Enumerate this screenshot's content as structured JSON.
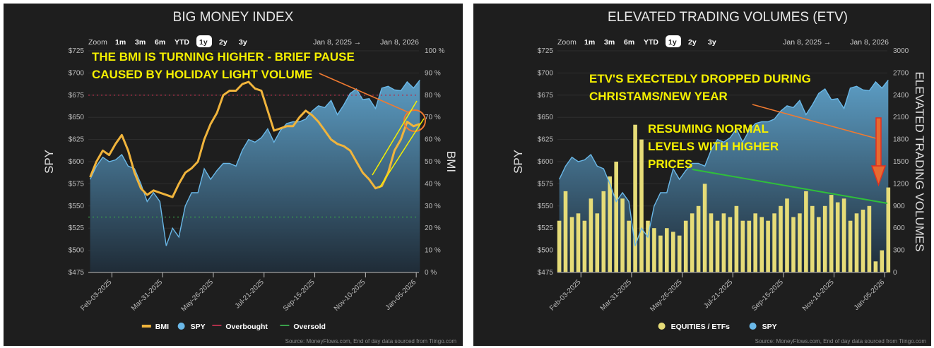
{
  "zoom_controls": {
    "label": "Zoom",
    "buttons": [
      "1m",
      "3m",
      "6m",
      "YTD",
      "1y",
      "2y",
      "3y"
    ],
    "selected": "1y",
    "range_from": "Jan 8, 2025",
    "range_arrow": "→",
    "range_to": "Jan 8, 2026"
  },
  "source": "Source: MoneyFlows.com, End of day data sourced from Tiingo.com",
  "colors": {
    "panel_bg": "#1e1e1e",
    "spy_line": "#6ab8e8",
    "spy_area_top": "#5fa3cc",
    "spy_area_bottom": "#1f2c38",
    "bmi": "#f0b43c",
    "overbought": "#b0304a",
    "oversold": "#3aa04a",
    "volume": "#e6dc78",
    "annotation_text": "#f5f000",
    "annotation_arrow": "#f07a30",
    "channel": "#f5f000",
    "trend_green": "#2fbf3a",
    "red_arrow": "#e03020"
  },
  "chart_data": [
    {
      "type": "line",
      "title": "BIG MONEY INDEX",
      "ylabel": "SPY",
      "y2label": "BMI",
      "ylim": [
        475,
        725
      ],
      "y2lim": [
        0,
        100
      ],
      "yticks": [
        "$475",
        "$500",
        "$525",
        "$550",
        "$575",
        "$600",
        "$625",
        "$650",
        "$675",
        "$700",
        "$725"
      ],
      "y2ticks": [
        "0 %",
        "10 %",
        "20 %",
        "30 %",
        "40 %",
        "50 %",
        "60 %",
        "70 %",
        "80 %",
        "90 %",
        "100 %"
      ],
      "xlim": [
        "2025-01-08",
        "2026-01-08"
      ],
      "xticks": [
        "Feb-03-2025",
        "Mar-31-2025",
        "May-26-2025",
        "Jul-21-2025",
        "Sep-15-2025",
        "Nov-10-2025",
        "Jan-05-2026"
      ],
      "grid": true,
      "legend": {
        "placement": "bottom",
        "items": [
          "BMI",
          "SPY",
          "Overbought",
          "Oversold"
        ]
      },
      "overbought": 80,
      "oversold": 25,
      "x_start": "2025-01-10",
      "x_step_days": 7,
      "series": [
        {
          "name": "SPY",
          "axis": "left",
          "kind": "area",
          "values": [
            580,
            595,
            605,
            600,
            602,
            608,
            595,
            592,
            575,
            555,
            565,
            555,
            505,
            525,
            515,
            550,
            565,
            565,
            592,
            580,
            590,
            598,
            598,
            595,
            613,
            625,
            622,
            627,
            637,
            622,
            635,
            643,
            645,
            645,
            648,
            657,
            663,
            661,
            669,
            653,
            664,
            677,
            682,
            670,
            671,
            660,
            683,
            685,
            681,
            680,
            690,
            683,
            692
          ]
        },
        {
          "name": "BMI",
          "axis": "right",
          "kind": "line",
          "values": [
            43,
            50,
            55,
            53,
            58,
            62,
            55,
            45,
            38,
            35,
            37,
            36,
            35,
            34,
            40,
            45,
            47,
            50,
            60,
            67,
            72,
            80,
            82,
            82,
            85,
            86,
            83,
            82,
            73,
            64,
            65,
            66,
            66,
            70,
            73,
            71,
            68,
            64,
            60,
            58,
            57,
            55,
            50,
            45,
            42,
            38,
            39,
            45,
            55,
            60,
            68,
            66,
            67
          ]
        }
      ],
      "annotations": [
        "THE BMI IS TURNING HIGHER - BRIEF PAUSE",
        "CAUSED BY HOLIDAY LIGHT VOLUME"
      ]
    },
    {
      "type": "bar",
      "title": "ELEVATED TRADING VOLUMES (ETV)",
      "ylabel": "SPY",
      "y2label": "ELEVATED TRADING VOLUMES",
      "ylim": [
        475,
        725
      ],
      "y2lim": [
        0,
        3000
      ],
      "yticks": [
        "$475",
        "$500",
        "$525",
        "$550",
        "$575",
        "$600",
        "$625",
        "$650",
        "$675",
        "$700",
        "$725"
      ],
      "y2ticks": [
        "0",
        "300",
        "600",
        "900",
        "1200",
        "1500",
        "1800",
        "2100",
        "2400",
        "2700",
        "3000"
      ],
      "xlim": [
        "2025-01-08",
        "2026-01-08"
      ],
      "xticks": [
        "Feb-03-2025",
        "Mar-31-2025",
        "May-26-2025",
        "Jul-21-2025",
        "Sep-15-2025",
        "Nov-10-2025",
        "Jan-05-2026"
      ],
      "grid": true,
      "legend": {
        "placement": "bottom",
        "items": [
          "EQUITIES / ETFs",
          "SPY"
        ]
      },
      "x_start": "2025-01-10",
      "x_step_days": 7,
      "series": [
        {
          "name": "EQUITIES / ETFs",
          "axis": "right",
          "kind": "bar",
          "values": [
            700,
            1100,
            750,
            800,
            700,
            1000,
            800,
            1100,
            1300,
            1500,
            1000,
            700,
            2000,
            1800,
            700,
            600,
            500,
            600,
            550,
            500,
            700,
            800,
            900,
            1200,
            800,
            700,
            800,
            750,
            900,
            700,
            700,
            800,
            750,
            700,
            800,
            900,
            1000,
            750,
            800,
            1100,
            900,
            750,
            900,
            1050,
            950,
            1000,
            700,
            800,
            850,
            900,
            150,
            300,
            1150
          ]
        },
        {
          "name": "SPY",
          "axis": "left",
          "kind": "area",
          "values": [
            580,
            595,
            605,
            600,
            602,
            608,
            595,
            592,
            575,
            555,
            565,
            555,
            505,
            525,
            515,
            550,
            565,
            565,
            592,
            580,
            590,
            598,
            598,
            595,
            613,
            625,
            622,
            627,
            637,
            622,
            635,
            643,
            645,
            645,
            648,
            657,
            663,
            661,
            669,
            653,
            664,
            677,
            682,
            670,
            671,
            660,
            683,
            685,
            681,
            680,
            690,
            683,
            692
          ]
        }
      ],
      "annotations": [
        "ETV'S EXECTEDLY DROPPED DURING",
        "CHRISTAMS/NEW YEAR",
        "RESUMING NORMAL",
        "LEVELS WITH HIGHER",
        "PRICES"
      ]
    }
  ]
}
